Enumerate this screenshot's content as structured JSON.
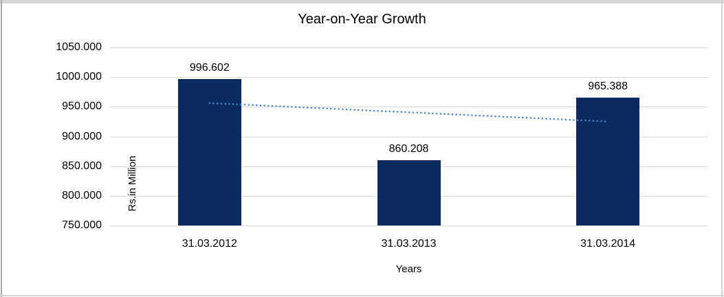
{
  "chart_data": {
    "type": "bar",
    "title": "Year-on-Year Growth",
    "categories": [
      "31.03.2012",
      "31.03.2013",
      "31.03.2014"
    ],
    "values": [
      996.602,
      860.208,
      965.388
    ],
    "data_labels": [
      "996.602",
      "860.208",
      "965.388"
    ],
    "xlabel": "Years",
    "ylabel": "Rs.in Million",
    "ylim": [
      750,
      1050
    ],
    "ytick_interval": 50,
    "ytick_labels": [
      "1050.000",
      "1000.000",
      "950.000",
      "900.000",
      "850.000",
      "800.000",
      "750.000"
    ],
    "grid": true,
    "legend": "none",
    "trendline": {
      "type": "linear",
      "style": "dotted",
      "start_value": 956.3,
      "end_value": 925.1
    }
  },
  "colors": {
    "bar": "#0b2b60",
    "trendline": "#4a86c8",
    "gridline": "#d9d9d9",
    "text": "#000000",
    "frame_top": "#d8d8d8",
    "frame_left": "#a8a8a8",
    "frame_side": "#d2d2d2",
    "background": "#ffffff"
  }
}
